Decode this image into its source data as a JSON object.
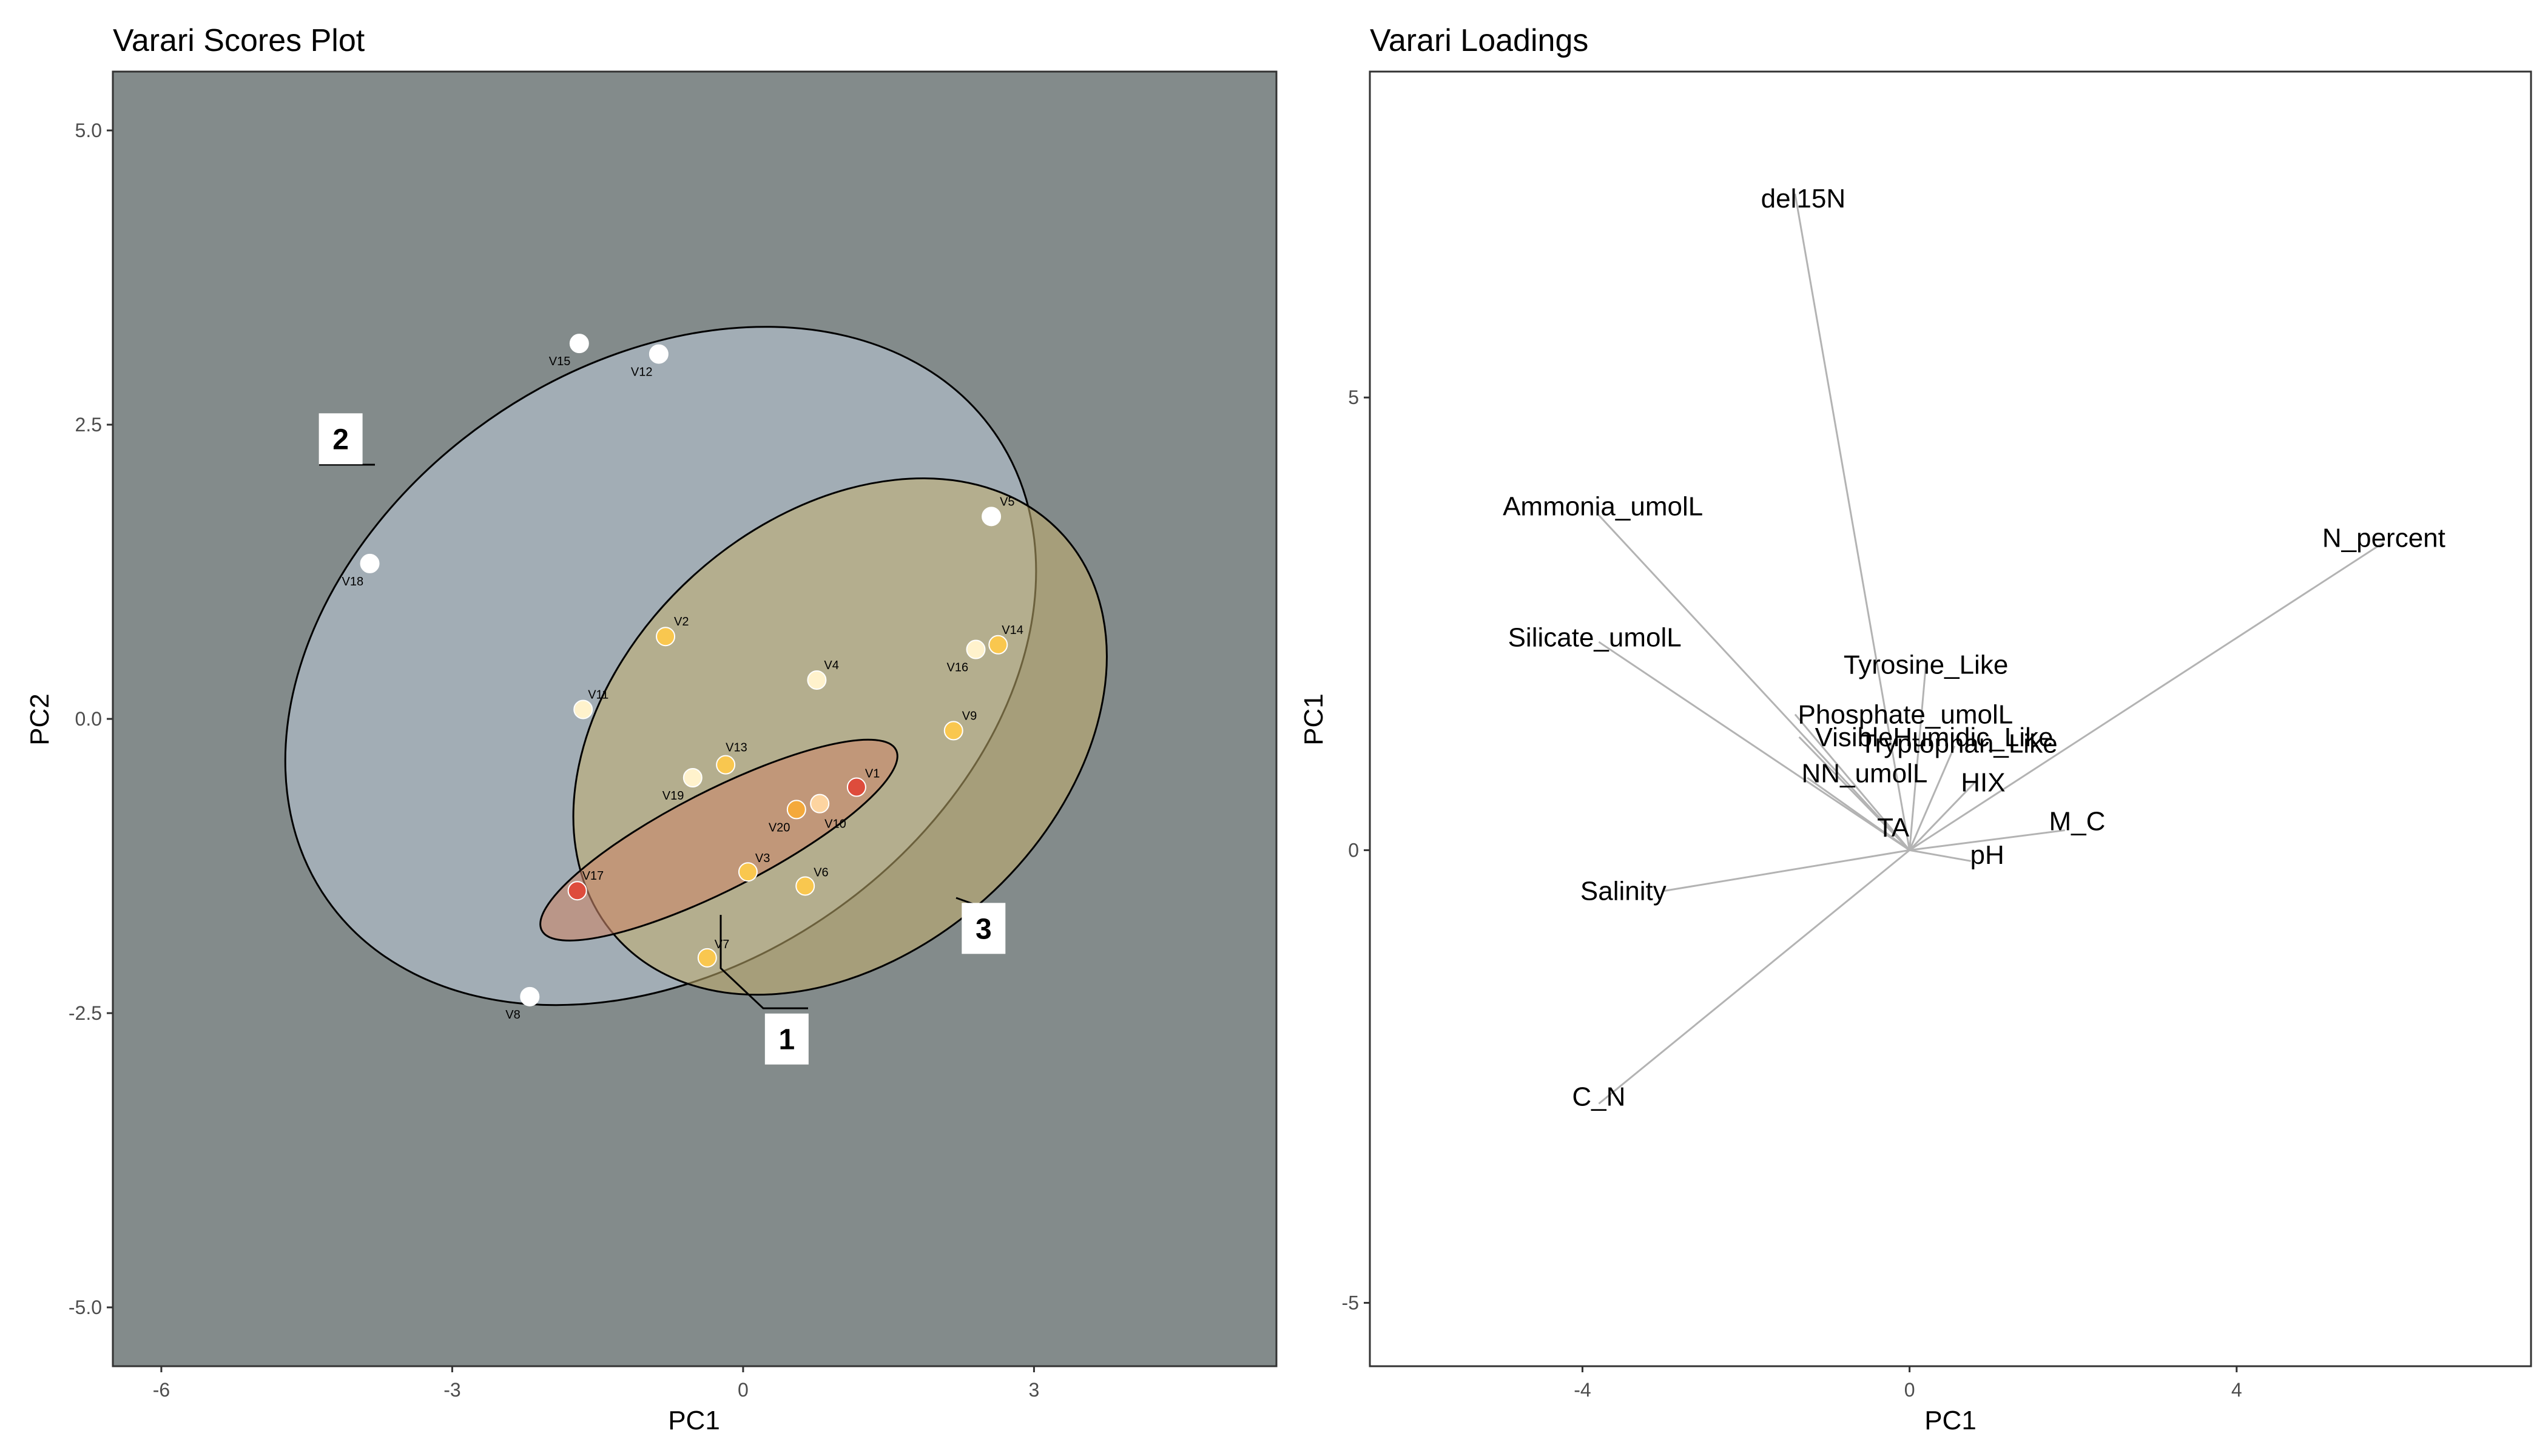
{
  "chart_data": [
    {
      "type": "scatter",
      "title": "Varari Scores Plot",
      "xlabel": "PC1",
      "ylabel": "PC2",
      "xlim": [
        -6.5,
        5.5
      ],
      "ylim": [
        -5.5,
        5.5
      ],
      "xticks": [
        -6,
        -3,
        0,
        3
      ],
      "yticks": [
        5.0,
        2.5,
        0.0,
        -2.5,
        -5.0
      ],
      "tick_labels_x": [
        "-6",
        "-3",
        "0",
        "3"
      ],
      "tick_labels_y": [
        "5.0",
        "2.5",
        "0.0",
        "-2.5",
        "-5.0"
      ],
      "panel_background": "#838b8b",
      "grid": false,
      "points": [
        {
          "label": "V1",
          "x": 1.17,
          "y": -0.58,
          "color": "#de4c3c"
        },
        {
          "label": "V2",
          "x": -0.8,
          "y": 0.7,
          "color": "#f9c74f"
        },
        {
          "label": "V3",
          "x": 0.05,
          "y": -1.3,
          "color": "#f9c74f"
        },
        {
          "label": "V4",
          "x": 0.76,
          "y": 0.33,
          "color": "#fff2cc"
        },
        {
          "label": "V5",
          "x": 2.56,
          "y": 1.72,
          "color": "#ffffff"
        },
        {
          "label": "V6",
          "x": 0.64,
          "y": -1.42,
          "color": "#f9c74f"
        },
        {
          "label": "V7",
          "x": -0.37,
          "y": -2.03,
          "color": "#f9c74f"
        },
        {
          "label": "V8",
          "x": -2.2,
          "y": -2.36,
          "color": "#ffffff"
        },
        {
          "label": "V9",
          "x": 2.17,
          "y": -0.1,
          "color": "#f9c74f"
        },
        {
          "label": "V10",
          "x": 0.79,
          "y": -0.72,
          "color": "#fdd4a0"
        },
        {
          "label": "V11",
          "x": -1.65,
          "y": 0.08,
          "color": "#fff2cc"
        },
        {
          "label": "V12",
          "x": -0.87,
          "y": 3.1,
          "color": "#ffffff"
        },
        {
          "label": "V13",
          "x": -0.18,
          "y": -0.39,
          "color": "#f9c74f"
        },
        {
          "label": "V14",
          "x": 2.63,
          "y": 0.63,
          "color": "#f9c74f"
        },
        {
          "label": "V15",
          "x": -1.69,
          "y": 3.19,
          "color": "#ffffff"
        },
        {
          "label": "V16",
          "x": 2.4,
          "y": 0.59,
          "color": "#fff2cc"
        },
        {
          "label": "V17",
          "x": -1.71,
          "y": -1.46,
          "color": "#de4c3c"
        },
        {
          "label": "V18",
          "x": -3.85,
          "y": 1.32,
          "color": "#ffffff"
        },
        {
          "label": "V19",
          "x": -0.52,
          "y": -0.5,
          "color": "#fff2cc"
        },
        {
          "label": "V20",
          "x": 0.55,
          "y": -0.77,
          "color": "#f4a93b"
        }
      ],
      "ellipses": [
        {
          "label": "2",
          "cx": -0.85,
          "cy": 0.45,
          "rx": 4.2,
          "ry": 2.55,
          "angle_deg": 35,
          "fill": "#c8d8e8",
          "opacity": 0.45
        },
        {
          "label": "3",
          "cx": 1.0,
          "cy": -0.15,
          "rx": 3.1,
          "ry": 1.85,
          "angle_deg": 42,
          "fill": "#c2ae6e",
          "opacity": 0.55
        },
        {
          "label": "1",
          "cx": -0.25,
          "cy": -1.03,
          "rx": 2.05,
          "ry": 0.42,
          "angle_deg": 27,
          "fill": "#c9876a",
          "opacity": 0.6
        }
      ],
      "cluster_labels": [
        {
          "text": "2",
          "x": -4.15,
          "y": 2.38
        },
        {
          "text": "3",
          "x": 2.48,
          "y": -1.78
        },
        {
          "text": "1",
          "x": 0.45,
          "y": -2.72
        }
      ]
    },
    {
      "type": "biplot-loadings",
      "title": "Varari Loadings",
      "xlabel": "PC1",
      "ylabel": "PC1",
      "xlim": [
        -6.6,
        7.6
      ],
      "ylim": [
        -5.7,
        8.6
      ],
      "xticks": [
        -4,
        0,
        4
      ],
      "yticks": [
        5,
        0,
        -5
      ],
      "tick_labels_x": [
        "-4",
        "0",
        "4"
      ],
      "tick_labels_y": [
        "5",
        "0",
        "-5"
      ],
      "panel_background": "#ffffff",
      "grid": false,
      "line_color": "#b3b3b3",
      "vectors": [
        {
          "label": "del15N",
          "x": -1.4,
          "y": 7.25
        },
        {
          "label": "Ammonia_umolL",
          "x": -3.8,
          "y": 3.7
        },
        {
          "label": "N_percent",
          "x": 5.8,
          "y": 3.4
        },
        {
          "label": "Silicate_umolL",
          "x": -3.8,
          "y": 2.3
        },
        {
          "label": "Tyrosine_Like",
          "x": 0.2,
          "y": 2.05
        },
        {
          "label": "Phosphate_umolL",
          "x": -1.4,
          "y": 1.5
        },
        {
          "label": "VisibleHumidic_Like",
          "x": -1.35,
          "y": 1.25
        },
        {
          "label": "Tryptophan_Like",
          "x": 0.55,
          "y": 1.15
        },
        {
          "label": "NN_umolL",
          "x": -1.25,
          "y": 0.8
        },
        {
          "label": "HIX",
          "x": 0.8,
          "y": 0.75
        },
        {
          "label": "M_C",
          "x": 1.9,
          "y": 0.22
        },
        {
          "label": "TA",
          "x": -0.3,
          "y": 0.2
        },
        {
          "label": "pH",
          "x": 0.75,
          "y": -0.12
        },
        {
          "label": "Salinity",
          "x": -3.0,
          "y": -0.45
        },
        {
          "label": "C_N",
          "x": -3.8,
          "y": -2.8
        }
      ],
      "label_positions": {
        "del15N": [
          -1.3,
          7.2
        ],
        "Ammonia_umolL": [
          -3.75,
          3.8
        ],
        "N_percent": [
          5.8,
          3.45
        ],
        "Silicate_umolL": [
          -3.85,
          2.35
        ],
        "Tyrosine_Like": [
          0.2,
          2.05
        ],
        "Phosphate_umolL": [
          -0.05,
          1.5
        ],
        "VisibleHumidic_Like": [
          0.3,
          1.25
        ],
        "Tryptophan_Like": [
          0.6,
          1.18
        ],
        "NN_umolL": [
          -0.55,
          0.85
        ],
        "HIX": [
          0.9,
          0.75
        ],
        "M_C": [
          2.05,
          0.32
        ],
        "TA": [
          -0.2,
          0.25
        ],
        "pH": [
          0.95,
          -0.05
        ],
        "Salinity": [
          -3.5,
          -0.45
        ],
        "C_N": [
          -3.8,
          -2.72
        ]
      }
    }
  ]
}
